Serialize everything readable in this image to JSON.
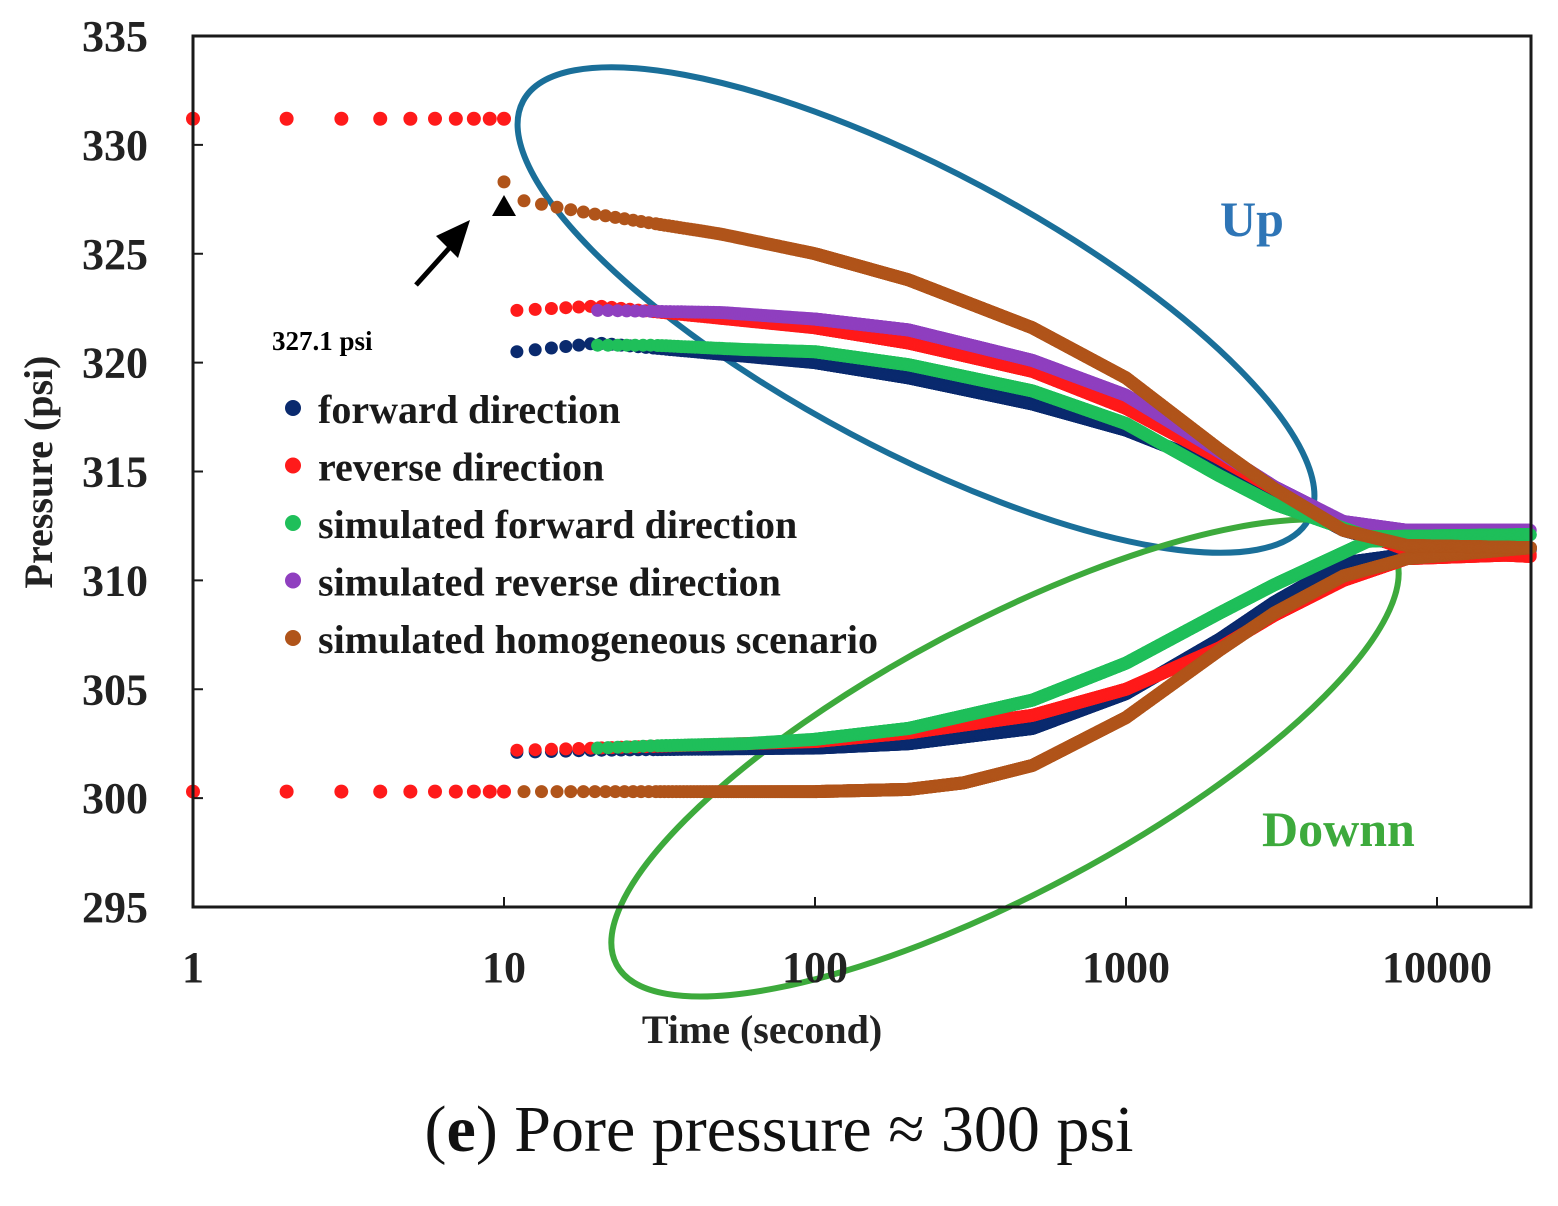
{
  "chart_data": {
    "type": "scatter",
    "x_scale": "log",
    "xlabel": "Time (second)",
    "ylabel": "Pressure (psi)",
    "xlim": [
      1,
      20000
    ],
    "ylim": [
      295,
      335
    ],
    "x_ticks": [
      1,
      10,
      100,
      1000,
      10000
    ],
    "x_tick_labels": [
      "1",
      "10",
      "100",
      "1000",
      "10000"
    ],
    "y_ticks": [
      295,
      300,
      305,
      310,
      315,
      320,
      325,
      330,
      335
    ],
    "y_tick_labels": [
      "295",
      "300",
      "305",
      "310",
      "315",
      "320",
      "325",
      "330",
      "335"
    ],
    "legend_position": "center-left",
    "series": [
      {
        "name": "forward direction",
        "color": "#0a2a6e",
        "up": {
          "x": [
            11,
            20,
            100,
            200,
            500,
            1000,
            2000,
            3000,
            5000,
            8000,
            20000
          ],
          "y": [
            320.5,
            320.9,
            320.0,
            319.3,
            318.1,
            316.9,
            315.2,
            314.0,
            312.3,
            311.5,
            311.4
          ]
        },
        "down": {
          "x": [
            11,
            20,
            100,
            200,
            500,
            1000,
            2000,
            3000,
            5000,
            8000,
            20000
          ],
          "y": [
            302.1,
            302.2,
            302.3,
            302.5,
            303.2,
            304.8,
            307.3,
            309.0,
            310.8,
            311.2,
            311.4
          ]
        }
      },
      {
        "name": "reverse direction",
        "color": "#ff1a1a",
        "up": {
          "x": [
            11,
            20,
            100,
            200,
            500,
            1000,
            2000,
            3000,
            5000,
            8000,
            20000
          ],
          "y": [
            322.4,
            322.6,
            321.6,
            320.9,
            319.6,
            317.9,
            315.6,
            314.2,
            312.5,
            311.4,
            311.1
          ]
        },
        "down": {
          "x": [
            11,
            20,
            100,
            200,
            500,
            1000,
            2000,
            3000,
            5000,
            8000,
            20000
          ],
          "y": [
            302.2,
            302.3,
            302.6,
            303.0,
            303.8,
            305.0,
            306.9,
            308.4,
            310.0,
            311.0,
            311.2
          ]
        },
        "pre_step": {
          "x": [
            1,
            2,
            3,
            4,
            5,
            6,
            7,
            8,
            9,
            10
          ],
          "y_up": [
            331.2,
            331.2,
            331.2,
            331.2,
            331.2,
            331.2,
            331.2,
            331.2,
            331.2,
            331.2
          ],
          "y_down": [
            300.3,
            300.3,
            300.3,
            300.3,
            300.3,
            300.3,
            300.3,
            300.3,
            300.3,
            300.3
          ]
        }
      },
      {
        "name": "simulated forward direction",
        "color": "#1fbf5a",
        "up": {
          "x": [
            20,
            30,
            60,
            100,
            200,
            500,
            1000,
            2000,
            3000,
            6000,
            20000
          ],
          "y": [
            320.8,
            320.8,
            320.6,
            320.5,
            319.9,
            318.7,
            317.2,
            314.8,
            313.5,
            312.0,
            312.1
          ]
        },
        "down": {
          "x": [
            20,
            30,
            60,
            100,
            200,
            500,
            1000,
            2000,
            3000,
            6000,
            20000
          ],
          "y": [
            302.3,
            302.4,
            302.5,
            302.7,
            303.2,
            304.5,
            306.2,
            308.5,
            309.8,
            311.8,
            312.1
          ]
        }
      },
      {
        "name": "simulated reverse direction",
        "color": "#8f3fbf",
        "up": {
          "x": [
            20,
            50,
            100,
            200,
            500,
            1000,
            2000,
            3000,
            5000,
            8000,
            20000
          ],
          "y": [
            322.4,
            322.3,
            322.0,
            321.5,
            320.1,
            318.5,
            315.9,
            314.3,
            312.7,
            312.3,
            312.3
          ]
        }
      },
      {
        "name": "simulated homogeneous scenario",
        "color": "#b0541a",
        "up": {
          "x": [
            10,
            11,
            14,
            20,
            30,
            50,
            100,
            200,
            500,
            1000,
            2000,
            3000,
            5000,
            8000,
            20000
          ],
          "y": [
            328.3,
            327.5,
            327.2,
            326.8,
            326.4,
            325.9,
            325.0,
            323.8,
            321.6,
            319.3,
            316.0,
            314.2,
            312.3,
            311.6,
            311.5
          ]
        },
        "down": {
          "x": [
            10,
            14,
            20,
            30,
            50,
            100,
            200,
            300,
            500,
            1000,
            2000,
            3000,
            5000,
            8000,
            20000
          ],
          "y": [
            300.3,
            300.3,
            300.3,
            300.3,
            300.3,
            300.3,
            300.4,
            300.7,
            301.5,
            303.7,
            306.8,
            308.5,
            310.2,
            311.0,
            311.5
          ]
        }
      }
    ],
    "annotations": [
      {
        "text": "327.1 psi",
        "x": 10,
        "y": 327.1,
        "marker": "triangle"
      },
      {
        "text": "Up",
        "color": "#2e75b6"
      },
      {
        "text": "Downn",
        "color": "#3daa3c"
      }
    ],
    "highlight_ellipses": [
      {
        "label": "Up",
        "color": "#1a6f99"
      },
      {
        "label": "Downn",
        "color": "#3daa3c"
      }
    ]
  },
  "caption": {
    "open": "(",
    "letter": "e",
    "rest": ") Pore pressure ≈ 300 psi"
  }
}
